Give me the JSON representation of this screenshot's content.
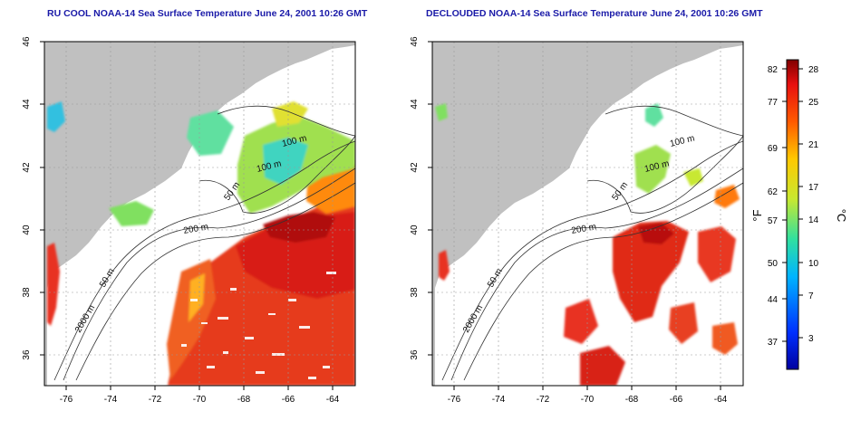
{
  "titles": {
    "left": "RU COOL NOAA-14 Sea Surface Temperature June 24, 2001 10:26 GMT",
    "right": "DECLOUDED NOAA-14 Sea Surface Temperature June 24, 2001 10:26 GMT"
  },
  "axes": {
    "x_ticks": [
      -76,
      -74,
      -72,
      -70,
      -68,
      -66,
      -64
    ],
    "y_ticks": [
      36,
      38,
      40,
      42,
      44,
      46
    ],
    "x_range": [
      -77.2,
      -63.0
    ],
    "y_range": [
      35.0,
      46.0
    ]
  },
  "contour_labels": {
    "left": [
      "100 m",
      "100 m",
      "50 m",
      "200 m",
      "50 m",
      "2000 m"
    ],
    "right": [
      "100 m",
      "100 m",
      "50 m",
      "200 m",
      "50 m",
      "2000 m"
    ]
  },
  "colorbar": {
    "fahrenheit_label": "°F",
    "celsius_label": "°C",
    "fahrenheit_ticks": [
      "82",
      "77",
      "69",
      "62",
      "57",
      "50",
      "44",
      "37"
    ],
    "celsius_ticks": [
      "28",
      "25",
      "21",
      "17",
      "14",
      "10",
      "7",
      "3"
    ],
    "range_c": [
      0,
      29
    ]
  },
  "colors": {
    "land": "#c0c0c0",
    "ocean_nodata": "#ffffff",
    "title": "#1a1aa8"
  }
}
